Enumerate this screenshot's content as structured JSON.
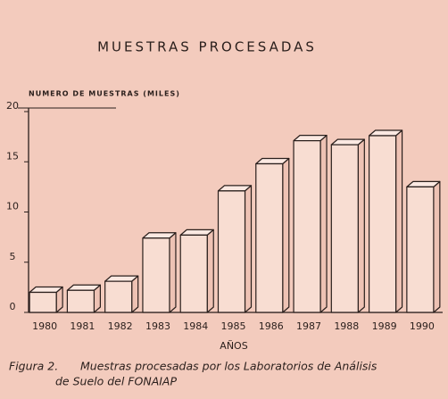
{
  "chart_data": {
    "type": "bar",
    "title": "MUESTRAS PROCESADAS",
    "y_label": "NUMERO DE MUESTRAS (MILES)",
    "x_label": "AÑOS",
    "caption_label": "Figura 2.",
    "caption": [
      "Muestras procesadas por los Laboratorios de Análisis",
      "de Suelo del FONAIAP"
    ],
    "categories": [
      "1980",
      "1981",
      "1982",
      "1983",
      "1984",
      "1985",
      "1986",
      "1987",
      "1988",
      "1989",
      "1990"
    ],
    "values": [
      2.0,
      2.2,
      3.1,
      7.4,
      7.7,
      12.1,
      14.8,
      17.1,
      16.7,
      17.6,
      12.5
    ],
    "color": "#f8ddd2",
    "ylim": [
      0,
      20
    ],
    "yticks": [
      0,
      5,
      10,
      15,
      20
    ]
  }
}
